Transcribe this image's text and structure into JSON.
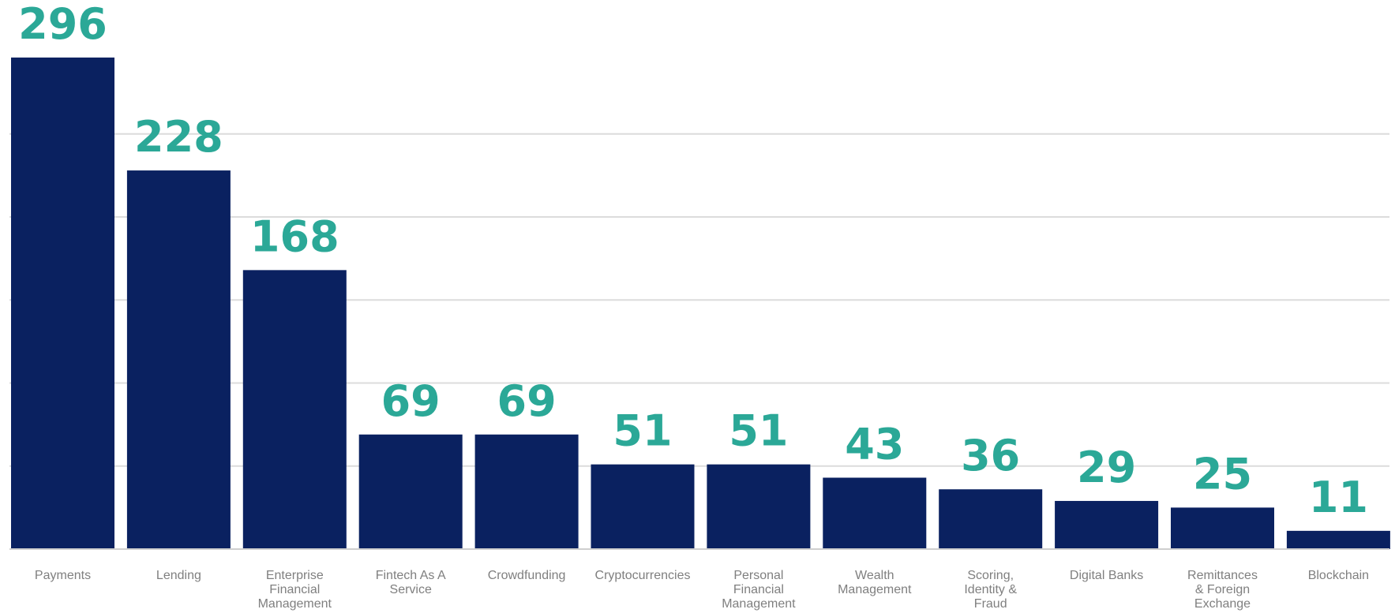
{
  "chart_data": {
    "type": "bar",
    "title": "",
    "xlabel": "",
    "ylabel": "",
    "ylim": [
      0,
      300
    ],
    "grid": true,
    "legend": "none",
    "categories": [
      "Payments",
      "Lending",
      "Enterprise\nFinancial\nManagement",
      "Fintech As A\nService",
      "Crowdfunding",
      "Cryptocurrencies",
      "Personal\nFinancial\nManagement",
      "Wealth\nManagement",
      "Scoring,\nIdentity &\nFraud",
      "Digital Banks",
      "Remittances\n& Foreign\nExchange",
      "Blockchain"
    ],
    "values": [
      296,
      228,
      168,
      69,
      69,
      51,
      51,
      43,
      36,
      29,
      25,
      11
    ],
    "data_labels": [
      "296",
      "228",
      "168",
      "69",
      "69",
      "51",
      "51",
      "43",
      "36",
      "29",
      "25",
      "11"
    ],
    "colors": {
      "bar": "#0a2160",
      "value_label": "#2ba897",
      "category_label": "#7f7f7f",
      "grid": "#dcdcdc",
      "baseline": "#cfcfcf"
    }
  }
}
